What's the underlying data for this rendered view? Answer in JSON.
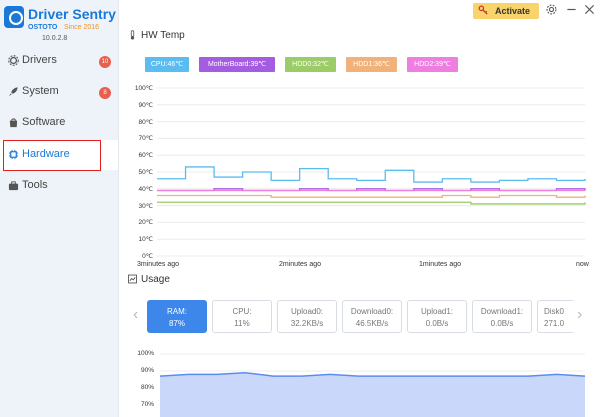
{
  "app": {
    "title": "Driver Sentry",
    "brand": "OSTOTO",
    "since": "Since 2016",
    "version": "10.0.2.8"
  },
  "topbar": {
    "activate_label": "Activate",
    "colors": {
      "activate_bg": "#f9d36b"
    }
  },
  "sidebar": {
    "items": [
      {
        "label": "Drivers",
        "badge": "10",
        "icon": "gear-icon"
      },
      {
        "label": "System",
        "badge": "8",
        "icon": "rocket-icon"
      },
      {
        "label": "Software",
        "badge": "",
        "icon": "bag-icon"
      },
      {
        "label": "Hardware",
        "badge": "",
        "icon": "chip-icon",
        "selected": true
      },
      {
        "label": "Tools",
        "badge": "",
        "icon": "toolbox-icon"
      }
    ]
  },
  "hw_temp": {
    "title": "HW Temp",
    "legend": [
      {
        "label": "CPU:46℃",
        "color": "#5bbcf0"
      },
      {
        "label": "MotherBoard:39℃",
        "color": "#a45de0"
      },
      {
        "label": "HDD0:32℃",
        "color": "#9ccc65"
      },
      {
        "label": "HDD1:36℃",
        "color": "#f0b27a"
      },
      {
        "label": "HDD2:39℃",
        "color": "#ee7fe0"
      }
    ],
    "y_ticks": [
      "100℃",
      "90℃",
      "80℃",
      "70℃",
      "60℃",
      "50℃",
      "40℃",
      "30℃",
      "20℃",
      "10℃",
      "0℃"
    ],
    "x_ticks": [
      "3minutes ago",
      "2minutes ago",
      "1minutes ago",
      "now"
    ]
  },
  "chart_data": [
    {
      "type": "line",
      "title": "HW Temp",
      "ylim": [
        0,
        100
      ],
      "yunit": "℃",
      "x": [
        0,
        12,
        24,
        36,
        48,
        60,
        72,
        84,
        96,
        108,
        120,
        132,
        144,
        156,
        168,
        180
      ],
      "xlabels": [
        "3minutes ago",
        "2minutes ago",
        "1minutes ago",
        "now"
      ],
      "grid": "horizontal",
      "series": [
        {
          "name": "CPU:46℃",
          "color": "#5bbcf0",
          "values": [
            46,
            53,
            47,
            50,
            45,
            52,
            46,
            45,
            51,
            44,
            46,
            44,
            45,
            46,
            45,
            46
          ]
        },
        {
          "name": "MotherBoard:39℃",
          "color": "#a45de0",
          "values": [
            39,
            39,
            40,
            39,
            39,
            40,
            39,
            40,
            39,
            40,
            39,
            40,
            39,
            39,
            40,
            39
          ]
        },
        {
          "name": "HDD0:32℃",
          "color": "#9ccc65",
          "values": [
            32,
            32,
            32,
            32,
            32,
            32,
            32,
            32,
            32,
            32,
            32,
            31,
            31,
            31,
            31,
            32
          ]
        },
        {
          "name": "HDD1:36℃",
          "color": "#f0b27a",
          "values": [
            36,
            36,
            36,
            36,
            35,
            35,
            35,
            35,
            35,
            35,
            36,
            35,
            36,
            36,
            35,
            36
          ]
        },
        {
          "name": "HDD2:39℃",
          "color": "#ee7fe0",
          "values": [
            39,
            39,
            39,
            39,
            39,
            39,
            39,
            39,
            39,
            39,
            39,
            39,
            39,
            39,
            39,
            39
          ]
        }
      ]
    },
    {
      "type": "area",
      "ylim": [
        60,
        100
      ],
      "yunit": "%",
      "x": [
        0,
        12,
        24,
        36,
        48,
        60,
        72,
        84,
        96,
        108,
        120,
        132,
        144,
        156,
        168,
        180
      ],
      "grid": "horizontal",
      "series": [
        {
          "name": "RAM",
          "color": "#5b8def",
          "values": [
            87,
            88,
            88,
            89,
            87,
            87,
            88,
            87,
            87,
            87,
            87,
            87,
            87,
            87,
            88,
            87
          ]
        }
      ]
    }
  ],
  "usage": {
    "title": "Usage",
    "cards": [
      {
        "label": "RAM:",
        "value": "87%",
        "active": true
      },
      {
        "label": "CPU:",
        "value": "11%"
      },
      {
        "label": "Upload0:",
        "value": "32.2KB/s"
      },
      {
        "label": "Download0:",
        "value": "46.5KB/s"
      },
      {
        "label": "Upload1:",
        "value": "0.0B/s"
      },
      {
        "label": "Download1:",
        "value": "0.0B/s"
      },
      {
        "label": "Disk0",
        "value": "271.0"
      }
    ],
    "y_ticks": [
      "100%",
      "90%",
      "80%",
      "70%"
    ]
  }
}
